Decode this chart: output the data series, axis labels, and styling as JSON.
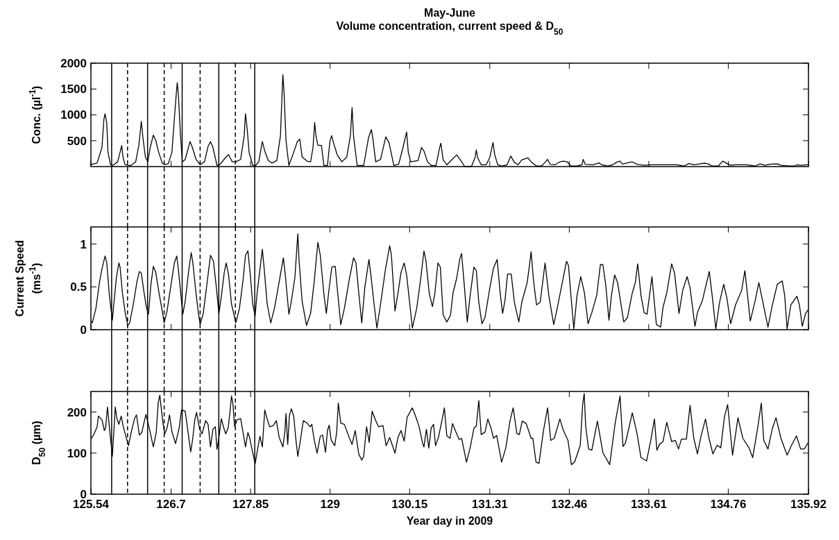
{
  "chart_data": [
    {
      "type": "line",
      "title": "May-June",
      "subtitle": "Volume concentration, current speed & D$_{50}$",
      "ylabel": "Conc. (µl$^{-1}$)",
      "xlim": [
        125.54,
        135.92
      ],
      "xticks": [
        125.54,
        126.7,
        127.85,
        129,
        130.15,
        131.31,
        132.46,
        133.61,
        134.76,
        135.92
      ],
      "ylim": [
        0,
        2000
      ],
      "yticks": [
        500,
        1000,
        1500,
        2000
      ],
      "tick_labels": "y",
      "line_style": "solid",
      "series": [
        {
          "color": "#000000",
          "x": [
            125.54,
            125.63,
            125.7,
            125.728,
            125.745,
            125.77,
            125.787,
            125.822,
            125.843,
            125.927,
            125.962,
            125.986,
            126.004,
            126.031,
            126.073,
            126.119,
            126.188,
            126.234,
            126.269,
            126.293,
            126.328,
            126.363,
            126.398,
            126.443,
            126.478,
            126.52,
            126.572,
            126.607,
            126.659,
            126.712,
            126.747,
            126.775,
            126.789,
            126.806,
            126.834,
            126.862,
            126.904,
            126.974,
            127.008,
            127.061,
            127.12,
            127.183,
            127.235,
            127.27,
            127.305,
            127.364,
            127.41,
            127.479,
            127.532,
            127.567,
            127.584,
            127.636,
            127.706,
            127.758,
            127.776,
            127.8,
            127.828,
            127.881,
            127.916,
            127.968,
            128.02,
            128.055,
            128.107,
            128.16,
            128.229,
            128.282,
            128.306,
            128.317,
            128.334,
            128.362,
            128.404,
            128.474,
            128.526,
            128.561,
            128.596,
            128.666,
            128.718,
            128.753,
            128.777,
            128.795,
            128.823,
            128.875,
            128.91,
            128.962,
            128.997,
            129.022,
            129.049,
            129.102,
            129.171,
            129.241,
            129.294,
            129.318,
            129.339,
            129.391,
            129.486,
            129.555,
            129.597,
            129.618,
            129.66,
            129.73,
            129.806,
            129.852,
            129.922,
            129.992,
            130.054,
            130.107,
            130.131,
            130.166,
            130.271,
            130.323,
            130.358,
            130.41,
            130.462,
            130.532,
            130.585,
            130.602,
            130.636,
            130.689,
            130.76,
            130.831,
            130.884,
            130.948,
            131.044,
            131.098,
            131.115,
            131.133,
            131.186,
            131.257,
            131.311,
            131.357,
            131.382,
            131.425,
            131.489,
            131.56,
            131.613,
            131.666,
            131.72,
            131.773,
            131.862,
            131.915,
            131.986,
            132.057,
            132.11,
            132.146,
            132.182,
            132.253,
            132.324,
            132.377,
            132.43,
            132.484,
            132.572,
            132.644,
            132.661,
            132.69,
            132.803,
            132.892,
            132.928,
            133.017,
            133.088,
            133.141,
            133.194,
            133.23,
            133.301,
            133.372,
            133.443,
            133.55,
            133.656,
            133.816,
            134.012,
            134.118,
            134.19,
            134.261,
            134.332,
            134.421,
            134.474,
            134.527,
            134.616,
            134.68,
            134.74,
            134.794,
            134.865,
            135.025,
            135.149,
            135.22,
            135.291,
            135.38,
            135.469,
            135.522,
            135.647,
            135.718,
            135.753,
            135.807,
            135.913
          ],
          "values": [
            37,
            69,
            369,
            913,
            1023,
            830,
            277,
            46,
            9,
            92,
            277,
            406,
            184,
            46,
            23,
            23,
            92,
            415,
            876,
            553,
            184,
            92,
            369,
            609,
            507,
            277,
            69,
            37,
            55,
            277,
            922,
            1406,
            1623,
            1383,
            645,
            92,
            138,
            484,
            369,
            138,
            37,
            92,
            392,
            484,
            369,
            23,
            46,
            161,
            231,
            138,
            92,
            92,
            138,
            599,
            1023,
            738,
            277,
            23,
            14,
            92,
            484,
            300,
            115,
            69,
            115,
            599,
            1429,
            1775,
            1429,
            507,
            23,
            277,
            484,
            530,
            184,
            106,
            92,
            369,
            853,
            599,
            415,
            406,
            23,
            23,
            484,
            599,
            461,
            231,
            92,
            184,
            599,
            1143,
            599,
            23,
            23,
            553,
            715,
            553,
            92,
            138,
            576,
            461,
            23,
            46,
            369,
            668,
            277,
            92,
            115,
            369,
            300,
            92,
            23,
            23,
            369,
            452,
            130,
            34,
            130,
            226,
            130,
            0,
            0,
            178,
            322,
            178,
            34,
            34,
            178,
            466,
            226,
            34,
            10,
            34,
            202,
            82,
            34,
            130,
            168,
            82,
            10,
            10,
            82,
            139,
            43,
            34,
            91,
            106,
            91,
            10,
            10,
            34,
            139,
            43,
            34,
            72,
            34,
            10,
            34,
            82,
            106,
            48,
            72,
            91,
            43,
            24,
            34,
            34,
            34,
            10,
            58,
            34,
            48,
            67,
            48,
            10,
            10,
            106,
            58,
            24,
            34,
            34,
            10,
            53,
            24,
            48,
            53,
            24,
            10,
            10,
            34,
            24,
            34
          ]
        }
      ],
      "ref_lines": [
        {
          "axis": "x",
          "value": 125.84,
          "line_style": "solid",
          "color": "#000000"
        },
        {
          "axis": "x",
          "value": 126.07,
          "line_style": "dashed",
          "color": "#000000"
        },
        {
          "axis": "x",
          "value": 126.36,
          "line_style": "solid",
          "color": "#000000"
        },
        {
          "axis": "x",
          "value": 126.6,
          "line_style": "dashed",
          "color": "#000000"
        },
        {
          "axis": "x",
          "value": 126.86,
          "line_style": "solid",
          "color": "#000000"
        },
        {
          "axis": "x",
          "value": 127.12,
          "line_style": "dashed",
          "color": "#000000"
        },
        {
          "axis": "x",
          "value": 127.39,
          "line_style": "solid",
          "color": "#000000"
        },
        {
          "axis": "x",
          "value": 127.63,
          "line_style": "dashed",
          "color": "#000000"
        },
        {
          "axis": "x",
          "value": 127.91,
          "line_style": "solid",
          "color": "#000000"
        }
      ]
    },
    {
      "type": "line",
      "ylabel": "Current Speed\n(ms$^{-1}$)",
      "xlim": [
        125.54,
        135.92
      ],
      "xticks": [
        125.54,
        126.7,
        127.85,
        129,
        130.15,
        131.31,
        132.46,
        133.61,
        134.76,
        135.92
      ],
      "ylim": [
        0,
        1.2
      ],
      "yticks": [
        0,
        0.5,
        1
      ],
      "tick_labels": "y",
      "line_style": "solid",
      "series": [
        {
          "color": "#000000",
          "x": [
            125.54,
            125.56,
            125.613,
            125.665,
            125.7,
            125.745,
            125.77,
            125.805,
            125.829,
            125.85,
            125.875,
            125.909,
            125.944,
            125.962,
            125.997,
            126.038,
            126.073,
            126.101,
            126.154,
            126.206,
            126.241,
            126.269,
            126.311,
            126.345,
            126.373,
            126.408,
            126.443,
            126.478,
            126.527,
            126.572,
            126.6,
            126.642,
            126.694,
            126.747,
            126.782,
            126.806,
            126.834,
            126.869,
            126.904,
            126.956,
            126.991,
            127.015,
            127.061,
            127.096,
            127.12,
            127.165,
            127.218,
            127.27,
            127.312,
            127.35,
            127.392,
            127.427,
            127.469,
            127.497,
            127.532,
            127.574,
            127.636,
            127.689,
            127.741,
            127.776,
            127.811,
            127.839,
            127.881,
            127.916,
            127.943,
            127.985,
            128.02,
            128.048,
            128.09,
            128.142,
            128.195,
            128.264,
            128.324,
            128.352,
            128.404,
            128.439,
            128.491,
            128.533,
            128.551,
            128.596,
            128.659,
            128.718,
            128.77,
            128.823,
            128.858,
            128.91,
            128.945,
            128.98,
            129.025,
            129.074,
            129.109,
            129.154,
            129.207,
            129.276,
            129.339,
            129.374,
            129.416,
            129.458,
            129.503,
            129.562,
            129.59,
            129.632,
            129.677,
            129.73,
            129.8,
            129.862,
            129.887,
            129.939,
            129.981,
            130.026,
            130.072,
            130.107,
            130.149,
            130.19,
            130.253,
            130.305,
            130.358,
            130.386,
            130.435,
            130.48,
            130.515,
            130.56,
            130.595,
            130.636,
            130.689,
            130.742,
            130.778,
            130.831,
            130.877,
            130.902,
            130.938,
            130.984,
            131.026,
            131.08,
            131.115,
            131.151,
            131.197,
            131.24,
            131.311,
            131.364,
            131.417,
            131.46,
            131.496,
            131.531,
            131.567,
            131.62,
            131.666,
            131.73,
            131.773,
            131.851,
            131.879,
            131.908,
            131.943,
            131.986,
            132.039,
            132.11,
            132.164,
            132.235,
            132.288,
            132.359,
            132.42,
            132.448,
            132.484,
            132.526,
            132.572,
            132.626,
            132.679,
            132.732,
            132.786,
            132.857,
            132.91,
            132.946,
            132.988,
            133.034,
            133.07,
            133.116,
            133.159,
            133.248,
            133.301,
            133.372,
            133.415,
            133.45,
            133.497,
            133.543,
            133.585,
            133.656,
            133.72,
            133.781,
            133.816,
            133.87,
            133.941,
            133.983,
            134.047,
            134.101,
            134.165,
            134.207,
            134.278,
            134.314,
            134.385,
            134.485,
            134.527,
            134.58,
            134.634,
            134.694,
            134.74,
            134.794,
            134.865,
            134.954,
            135,
            135.043,
            135.078,
            135.149,
            135.202,
            135.256,
            135.334,
            135.398,
            135.469,
            135.54,
            135.576,
            135.611,
            135.665,
            135.753,
            135.789,
            135.831,
            135.878,
            135.913
          ],
          "values": [
            0.1,
            0.08,
            0.25,
            0.56,
            0.71,
            0.86,
            0.78,
            0.42,
            0.25,
            0.11,
            0.33,
            0.61,
            0.78,
            0.73,
            0.42,
            0.19,
            0.05,
            0.08,
            0.3,
            0.56,
            0.68,
            0.66,
            0.42,
            0.25,
            0.18,
            0.53,
            0.74,
            0.67,
            0.42,
            0.22,
            0.08,
            0.22,
            0.5,
            0.78,
            0.86,
            0.7,
            0.47,
            0.18,
            0.33,
            0.7,
            0.9,
            0.78,
            0.42,
            0.19,
            0.06,
            0.19,
            0.53,
            0.87,
            0.8,
            0.53,
            0.19,
            0.39,
            0.67,
            0.78,
            0.64,
            0.3,
            0.08,
            0.25,
            0.58,
            0.87,
            0.92,
            0.7,
            0.3,
            0.16,
            0.42,
            0.7,
            0.94,
            0.7,
            0.3,
            0.08,
            0.25,
            0.56,
            0.84,
            0.64,
            0.18,
            0.33,
            0.61,
            1.12,
            0.81,
            0.33,
            0.05,
            0.19,
            0.56,
            1.02,
            0.87,
            0.42,
            0.19,
            0.44,
            0.73,
            0.74,
            0.44,
            0.06,
            0.25,
            0.58,
            0.84,
            0.78,
            0.42,
            0.08,
            0.5,
            0.82,
            0.64,
            0.33,
            0.02,
            0.3,
            0.7,
            0.98,
            0.87,
            0.22,
            0.42,
            0.67,
            0.78,
            0.64,
            0.33,
            0.02,
            0.25,
            0.56,
            0.92,
            0.81,
            0.42,
            0.27,
            0.42,
            0.78,
            0.73,
            0.17,
            0.09,
            0.17,
            0.43,
            0.6,
            0.83,
            0.89,
            0.55,
            0.09,
            0.4,
            0.73,
            0.69,
            0.32,
            0.07,
            0.14,
            0.49,
            0.72,
            0.82,
            0.43,
            0.19,
            0.35,
            0.65,
            0.65,
            0.32,
            0.09,
            0.32,
            0.55,
            0.72,
            0.91,
            0.57,
            0.29,
            0.32,
            0.78,
            0.4,
            0.06,
            0.26,
            0.55,
            0.8,
            0.75,
            0.4,
            0.01,
            0.4,
            0.62,
            0.43,
            0.07,
            0.2,
            0.4,
            0.76,
            0.76,
            0.52,
            0.11,
            0.4,
            0.64,
            0.55,
            0.09,
            0.14,
            0.43,
            0.55,
            0.77,
            0.4,
            0.2,
            0.18,
            0.62,
            0.06,
            0.03,
            0.26,
            0.43,
            0.77,
            0.66,
            0.19,
            0.46,
            0.62,
            0.49,
            0.04,
            0.2,
            0.34,
            0.68,
            0.4,
            0.01,
            0.32,
            0.53,
            0.37,
            0.07,
            0.29,
            0.46,
            0.69,
            0.37,
            0.1,
            0.34,
            0.55,
            0.34,
            0.03,
            0.29,
            0.53,
            0.57,
            0.4,
            0.01,
            0.29,
            0.39,
            0.29,
            0.04,
            0.19,
            0.23
          ]
        }
      ],
      "ref_lines": [
        {
          "axis": "x",
          "value": 125.84,
          "line_style": "solid",
          "color": "#000000"
        },
        {
          "axis": "x",
          "value": 126.07,
          "line_style": "dashed",
          "color": "#000000"
        },
        {
          "axis": "x",
          "value": 126.36,
          "line_style": "solid",
          "color": "#000000"
        },
        {
          "axis": "x",
          "value": 126.6,
          "line_style": "dashed",
          "color": "#000000"
        },
        {
          "axis": "x",
          "value": 126.86,
          "line_style": "solid",
          "color": "#000000"
        },
        {
          "axis": "x",
          "value": 127.12,
          "line_style": "dashed",
          "color": "#000000"
        },
        {
          "axis": "x",
          "value": 127.39,
          "line_style": "solid",
          "color": "#000000"
        },
        {
          "axis": "x",
          "value": 127.63,
          "line_style": "dashed",
          "color": "#000000"
        },
        {
          "axis": "x",
          "value": 127.91,
          "line_style": "solid",
          "color": "#000000"
        }
      ]
    },
    {
      "type": "line",
      "ylabel": "D$_{50}$ (µm)",
      "xlabel": "Year day in 2009",
      "xlim": [
        125.54,
        135.92
      ],
      "xticks": [
        125.54,
        126.7,
        127.85,
        129,
        130.15,
        131.31,
        132.46,
        133.61,
        134.76,
        135.92
      ],
      "ylim": [
        0,
        250
      ],
      "yticks": [
        0,
        100,
        200
      ],
      "line_style": "solid",
      "series": [
        {
          "color": "#000000",
          "x": [
            125.54,
            125.578,
            125.63,
            125.648,
            125.7,
            125.735,
            125.752,
            125.78,
            125.805,
            125.829,
            125.85,
            125.875,
            125.892,
            125.916,
            125.944,
            125.979,
            126.004,
            126.031,
            126.084,
            126.129,
            126.171,
            126.199,
            126.241,
            126.276,
            126.335,
            126.38,
            126.443,
            126.485,
            126.513,
            126.537,
            126.555,
            126.583,
            126.607,
            126.642,
            126.677,
            126.712,
            126.764,
            126.817,
            126.851,
            126.904,
            126.946,
            126.984,
            127.015,
            127.043,
            127.068,
            127.113,
            127.148,
            127.2,
            127.235,
            127.27,
            127.305,
            127.34,
            127.364,
            127.392,
            127.427,
            127.462,
            127.49,
            127.525,
            127.549,
            127.574,
            127.595,
            127.619,
            127.654,
            127.706,
            127.741,
            127.776,
            127.811,
            127.835,
            127.863,
            127.916,
            127.951,
            127.985,
            128.02,
            128.055,
            128.083,
            128.125,
            128.177,
            128.223,
            128.264,
            128.317,
            128.345,
            128.362,
            128.387,
            128.411,
            128.439,
            128.474,
            128.502,
            128.533,
            128.571,
            128.613,
            128.666,
            128.711,
            128.736,
            128.77,
            128.812,
            128.858,
            128.892,
            128.934,
            128.962,
            128.987,
            129.015,
            129.067,
            129.095,
            129.119,
            129.154,
            129.206,
            129.276,
            129.318,
            129.363,
            129.416,
            129.458,
            129.486,
            129.528,
            129.566,
            129.608,
            129.66,
            129.702,
            129.765,
            129.81,
            129.862,
            129.939,
            129.981,
            130.026,
            130.072,
            130.114,
            130.19,
            130.236,
            130.288,
            130.34,
            130.358,
            130.393,
            130.428,
            130.462,
            130.497,
            130.525,
            130.567,
            130.62,
            130.653,
            130.689,
            130.735,
            130.771,
            130.813,
            130.867,
            130.902,
            130.938,
            130.973,
            131.026,
            131.08,
            131.115,
            131.151,
            131.186,
            131.24,
            131.282,
            131.329,
            131.364,
            131.41,
            131.481,
            131.542,
            131.602,
            131.648,
            131.702,
            131.737,
            131.78,
            131.837,
            131.908,
            131.933,
            131.979,
            132.022,
            132.086,
            132.146,
            132.192,
            132.242,
            132.324,
            132.377,
            132.441,
            132.491,
            132.537,
            132.619,
            132.654,
            132.676,
            132.697,
            132.739,
            132.786,
            132.867,
            132.946,
            133.045,
            133.123,
            133.194,
            133.237,
            133.273,
            133.372,
            133.443,
            133.497,
            133.578,
            133.639,
            133.692,
            133.727,
            133.763,
            133.816,
            133.87,
            133.941,
            133.994,
            134.04,
            134.083,
            134.154,
            134.207,
            134.261,
            134.314,
            134.367,
            134.431,
            134.481,
            134.538,
            134.598,
            134.652,
            134.705,
            134.751,
            134.822,
            134.9,
            134.971,
            135.06,
            135.113,
            135.184,
            135.238,
            135.273,
            135.334,
            135.398,
            135.451,
            135.522,
            135.611,
            135.675,
            135.746,
            135.807,
            135.86,
            135.913
          ],
          "values": [
            135,
            144,
            164,
            190,
            181,
            155,
            161,
            212,
            167,
            126,
            92,
            161,
            212,
            184,
            170,
            190,
            167,
            150,
            118,
            155,
            184,
            193,
            144,
            150,
            194,
            164,
            115,
            150,
            222,
            241,
            213,
            173,
            147,
            161,
            193,
            152,
            123,
            161,
            205,
            202,
            150,
            103,
            138,
            181,
            199,
            158,
            147,
            179,
            170,
            115,
            158,
            164,
            109,
            138,
            184,
            161,
            147,
            161,
            196,
            239,
            219,
            164,
            181,
            184,
            150,
            115,
            150,
            138,
            115,
            74,
            109,
            141,
            115,
            205,
            187,
            164,
            167,
            179,
            138,
            115,
            150,
            196,
            121,
            190,
            208,
            190,
            138,
            92,
            132,
            179,
            173,
            164,
            170,
            132,
            100,
            141,
            144,
            102,
            155,
            168,
            132,
            118,
            150,
            222,
            173,
            170,
            138,
            121,
            155,
            97,
            83,
            92,
            164,
            126,
            202,
            179,
            164,
            167,
            118,
            138,
            100,
            138,
            155,
            129,
            187,
            210,
            190,
            164,
            123,
            115,
            158,
            112,
            161,
            170,
            118,
            138,
            181,
            210,
            142,
            136,
            172,
            154,
            133,
            136,
            107,
            78,
            113,
            160,
            166,
            228,
            145,
            151,
            183,
            160,
            136,
            143,
            78,
            113,
            178,
            210,
            148,
            145,
            178,
            172,
            136,
            136,
            78,
            75,
            154,
            210,
            131,
            136,
            183,
            154,
            131,
            72,
            78,
            119,
            219,
            245,
            166,
            110,
            107,
            178,
            101,
            72,
            172,
            239,
            116,
            125,
            198,
            145,
            89,
            81,
            131,
            183,
            107,
            121,
            128,
            175,
            128,
            131,
            110,
            134,
            134,
            216,
            136,
            98,
            142,
            183,
            136,
            98,
            119,
            113,
            189,
            218,
            95,
            186,
            136,
            113,
            89,
            160,
            222,
            131,
            110,
            160,
            186,
            136,
            95,
            119,
            142,
            110,
            110,
            125
          ]
        }
      ],
      "ref_lines": [
        {
          "axis": "x",
          "value": 125.84,
          "line_style": "solid",
          "color": "#000000"
        },
        {
          "axis": "x",
          "value": 126.07,
          "line_style": "dashed",
          "color": "#000000"
        },
        {
          "axis": "x",
          "value": 126.36,
          "line_style": "solid",
          "color": "#000000"
        },
        {
          "axis": "x",
          "value": 126.6,
          "line_style": "dashed",
          "color": "#000000"
        },
        {
          "axis": "x",
          "value": 126.86,
          "line_style": "solid",
          "color": "#000000"
        },
        {
          "axis": "x",
          "value": 127.12,
          "line_style": "dashed",
          "color": "#000000"
        },
        {
          "axis": "x",
          "value": 127.39,
          "line_style": "solid",
          "color": "#000000"
        },
        {
          "axis": "x",
          "value": 127.63,
          "line_style": "dashed",
          "color": "#000000"
        },
        {
          "axis": "x",
          "value": 127.91,
          "line_style": "solid",
          "color": "#000000"
        }
      ]
    }
  ]
}
